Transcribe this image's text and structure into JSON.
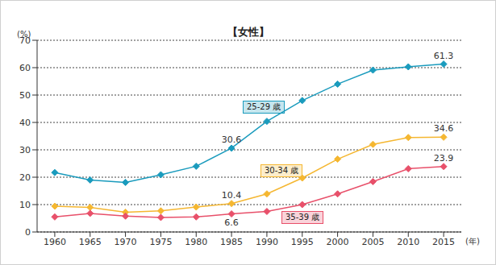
{
  "chart_data": {
    "type": "line",
    "title": "【女性】",
    "ylabel": "(%)",
    "xlabel": "(年)",
    "x": [
      1960,
      1965,
      1970,
      1975,
      1980,
      1985,
      1990,
      1995,
      2000,
      2005,
      2010,
      2015
    ],
    "series": [
      {
        "name": "25-29 歳",
        "color": "#1a9bbd",
        "marker": "diamond",
        "values": [
          21.7,
          19.0,
          18.1,
          20.9,
          24.0,
          30.6,
          40.4,
          48.0,
          54.0,
          59.1,
          60.3,
          61.3
        ]
      },
      {
        "name": "30-34 歳",
        "color": "#f5b731",
        "marker": "diamond",
        "values": [
          9.4,
          9.0,
          7.2,
          7.7,
          9.1,
          10.4,
          13.9,
          19.7,
          26.6,
          32.0,
          34.5,
          34.6
        ]
      },
      {
        "name": "35-39 歳",
        "color": "#e8506a",
        "marker": "diamond",
        "values": [
          5.5,
          6.8,
          5.8,
          5.3,
          5.5,
          6.6,
          7.5,
          10.0,
          13.9,
          18.4,
          23.1,
          23.9
        ]
      }
    ],
    "annotations": [
      {
        "series": "25-29 歳",
        "x": 1985,
        "text": "30.6"
      },
      {
        "series": "25-29 歳",
        "x": 2015,
        "text": "61.3"
      },
      {
        "series": "30-34 歳",
        "x": 1985,
        "text": "10.4"
      },
      {
        "series": "30-34 歳",
        "x": 2015,
        "text": "34.6"
      },
      {
        "series": "35-39 歳",
        "x": 1985,
        "text": "6.6"
      },
      {
        "series": "35-39 歳",
        "x": 2015,
        "text": "23.9"
      }
    ],
    "xlim": [
      1957.5,
      2017.5
    ],
    "xticks": [
      1960,
      1965,
      1970,
      1975,
      1980,
      1985,
      1990,
      1995,
      2000,
      2005,
      2010,
      2015
    ],
    "ylim": [
      0,
      70
    ],
    "yticks": [
      0,
      10,
      20,
      30,
      40,
      50,
      60,
      70
    ],
    "grid": true
  }
}
